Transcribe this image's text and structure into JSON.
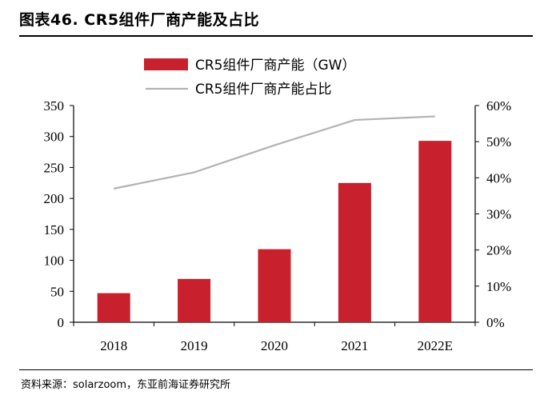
{
  "header": {
    "title": "图表46. CR5组件厂商产能及占比"
  },
  "footer": {
    "source": "资料来源：solarzoom，东亚前海证券研究所"
  },
  "colors": {
    "bar": "#c8202c",
    "line": "#b3b3b3"
  },
  "chart_data": {
    "type": "bar",
    "categories": [
      "2018",
      "2019",
      "2020",
      "2021",
      "2022E"
    ],
    "series": [
      {
        "name": "CR5组件厂商产能（GW）",
        "type": "bar",
        "axis": "left",
        "values": [
          47,
          70,
          118,
          225,
          293
        ]
      },
      {
        "name": "CR5组件厂商产能占比",
        "type": "line",
        "axis": "right",
        "values": [
          0.37,
          0.415,
          0.49,
          0.56,
          0.57
        ]
      }
    ],
    "y_left": {
      "ylim": [
        0,
        350
      ],
      "ticks": [
        0,
        50,
        100,
        150,
        200,
        250,
        300,
        350
      ],
      "tick_labels": [
        "0",
        "50",
        "100",
        "150",
        "200",
        "250",
        "300",
        "350"
      ]
    },
    "y_right": {
      "ylim": [
        0,
        0.6
      ],
      "ticks": [
        0,
        0.1,
        0.2,
        0.3,
        0.4,
        0.5,
        0.6
      ],
      "tick_labels": [
        "0%",
        "10%",
        "20%",
        "30%",
        "40%",
        "50%",
        "60%"
      ]
    },
    "legend": "top",
    "grid": false
  }
}
